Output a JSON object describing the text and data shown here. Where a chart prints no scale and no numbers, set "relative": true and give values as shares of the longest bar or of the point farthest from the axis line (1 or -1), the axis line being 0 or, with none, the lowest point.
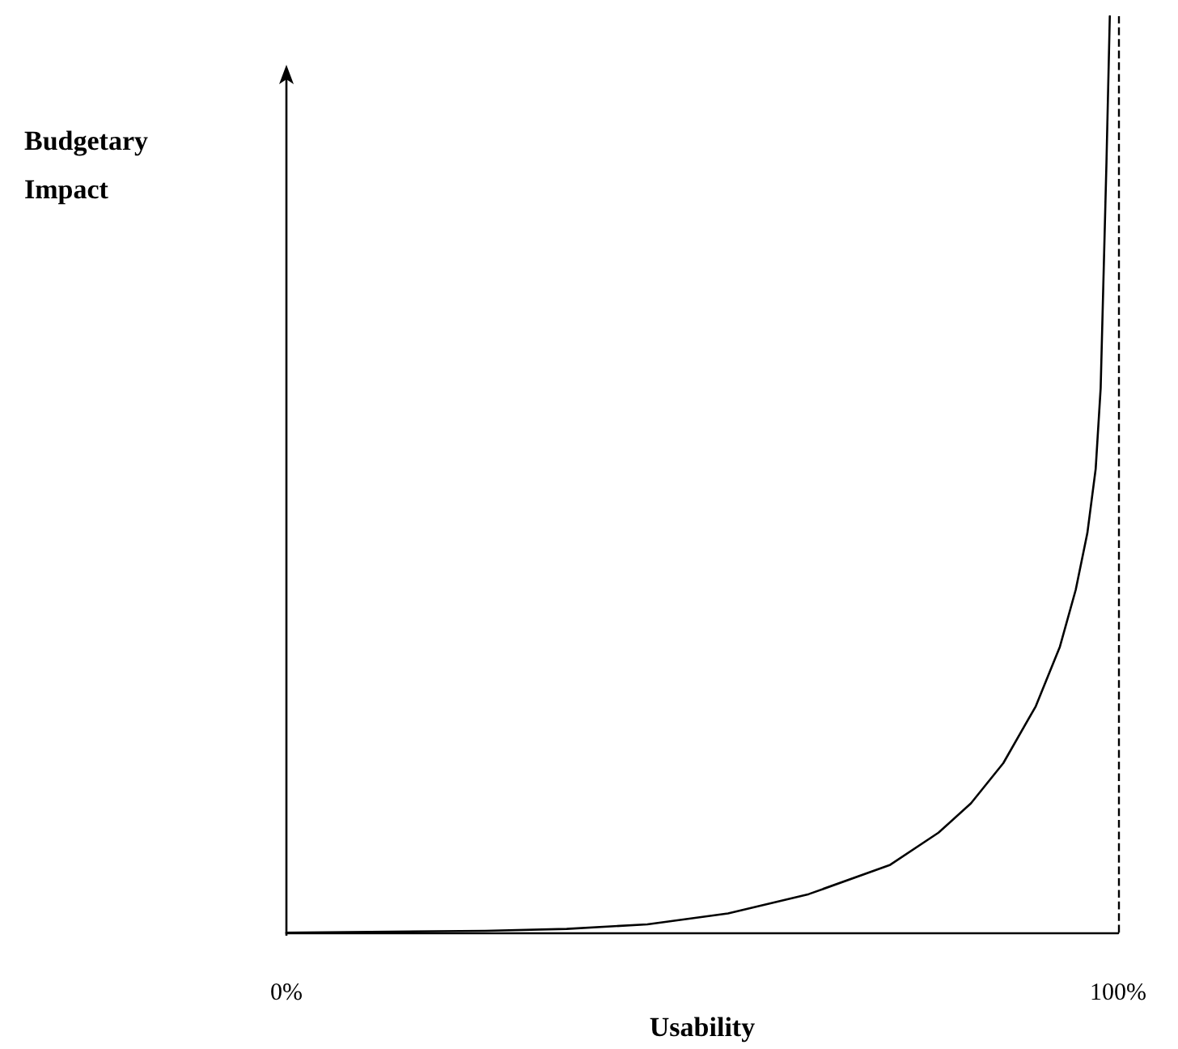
{
  "chart_data": {
    "type": "line",
    "relative": true,
    "xlabel": "Usability",
    "ylabel": "Budgetary\nImpact",
    "x": [
      0,
      23.9,
      33.7,
      43.4,
      53.1,
      62.8,
      72.6,
      78.4,
      82.3,
      86.2,
      90.1,
      93,
      94.9,
      96.3,
      97.3,
      97.9,
      98.2,
      98.6,
      99
    ],
    "series": [
      {
        "color": "#000000",
        "values": [
          0,
          0.002,
          0.004,
          0.009,
          0.021,
          0.042,
          0.074,
          0.109,
          0.141,
          0.185,
          0.247,
          0.312,
          0.374,
          0.436,
          0.506,
          0.594,
          0.7,
          0.841,
          1
        ]
      }
    ],
    "xlim": [
      0,
      100
    ],
    "xticks": [
      {
        "value": 0,
        "label": "0%"
      },
      {
        "value": 100,
        "label": "100%"
      }
    ],
    "ref_lines": [
      {
        "axis": "x",
        "value": 100,
        "line_style": "dashed",
        "color": "#000000"
      }
    ],
    "grid": false,
    "marker": "none",
    "line_style": "solid"
  }
}
